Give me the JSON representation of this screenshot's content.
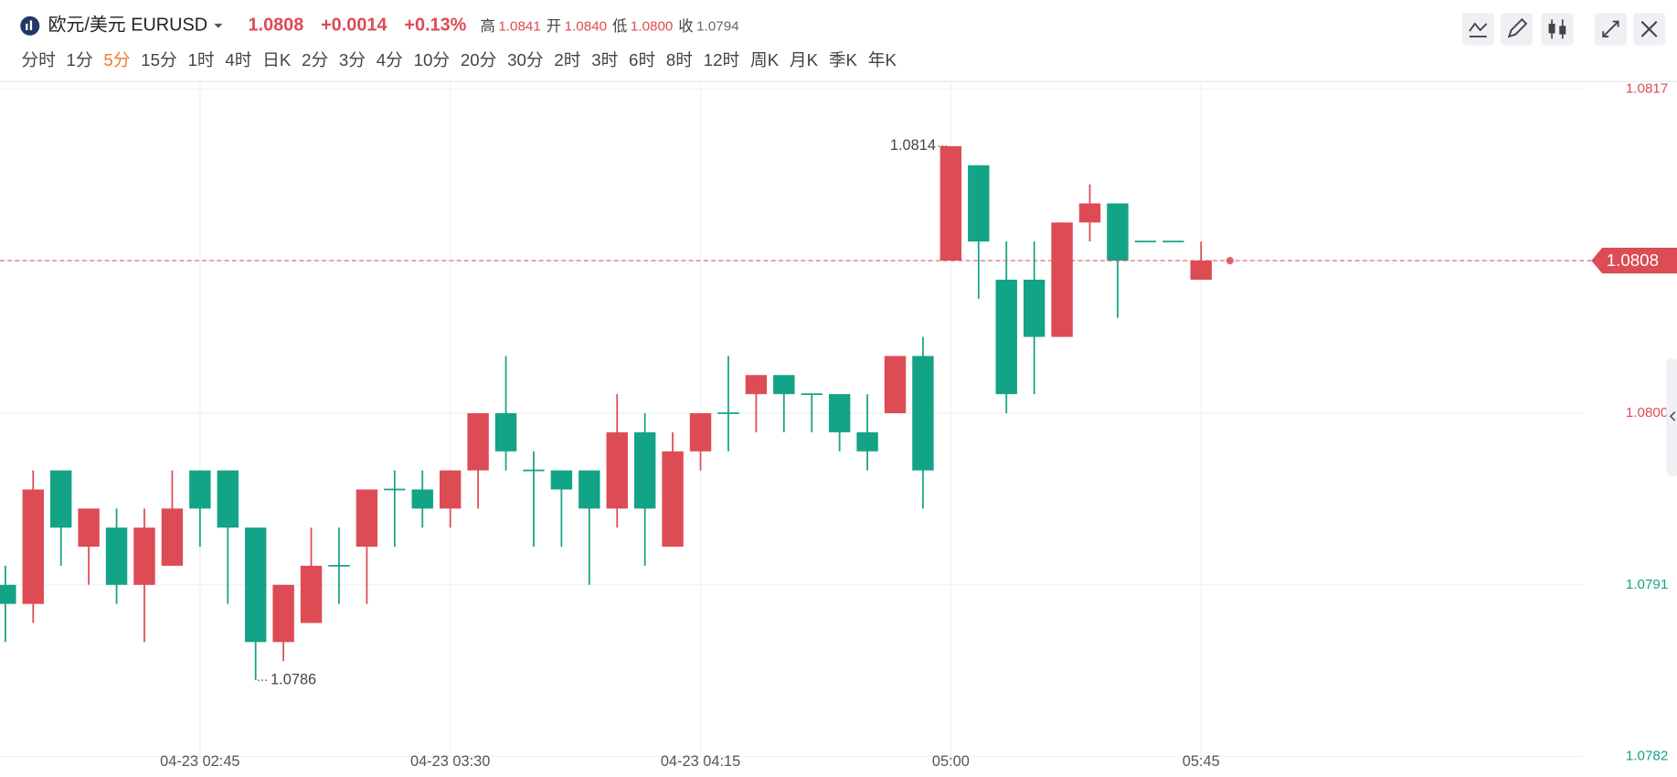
{
  "header": {
    "symbol": "欧元/美元 EURUSD",
    "price": "1.0808",
    "change": "+0.0014",
    "change_pct": "+0.13%",
    "stats": [
      {
        "label": "高",
        "value": "1.0841",
        "color": "#dd4b55"
      },
      {
        "label": "开",
        "value": "1.0840",
        "color": "#dd4b55"
      },
      {
        "label": "低",
        "value": "1.0800",
        "color": "#dd4b55"
      },
      {
        "label": "收",
        "value": "1.0794",
        "color": "#666666"
      }
    ],
    "intervals": [
      "分时",
      "1分",
      "5分",
      "15分",
      "1时",
      "4时",
      "日K",
      "2分",
      "3分",
      "4分",
      "10分",
      "20分",
      "30分",
      "2时",
      "3时",
      "6时",
      "8时",
      "12时",
      "周K",
      "月K",
      "季K",
      "年K"
    ],
    "active_interval": 2
  },
  "chart_data": {
    "type": "candlestick",
    "categories": [
      null,
      null,
      null,
      null,
      null,
      null,
      null,
      "04-23 02:45",
      null,
      null,
      null,
      null,
      null,
      null,
      null,
      null,
      "04-23 03:30",
      null,
      null,
      null,
      null,
      null,
      null,
      null,
      null,
      "04-23 04:15",
      null,
      null,
      null,
      null,
      null,
      null,
      null,
      null,
      "05:00",
      null,
      null,
      null,
      null,
      null,
      null,
      null,
      null,
      "05:45"
    ],
    "open": [
      1.0791,
      1.079,
      1.0797,
      1.0793,
      1.0794,
      1.0791,
      1.0792,
      1.0797,
      1.0797,
      1.0794,
      1.0788,
      1.0789,
      1.0792,
      1.0793,
      1.0796,
      1.0796,
      1.0795,
      1.0797,
      1.08,
      1.0797,
      1.0797,
      1.0797,
      1.0795,
      1.0799,
      1.0793,
      1.0798,
      1.08,
      1.0801,
      1.0802,
      1.0801,
      1.0801,
      1.0799,
      1.08,
      1.0803,
      1.0808,
      1.0813,
      1.0807,
      1.0807,
      1.0804,
      1.081,
      1.0811,
      1.0809,
      1.0809,
      1.0807
    ],
    "high": [
      1.0792,
      1.0797,
      1.0797,
      1.0795,
      1.0795,
      1.0795,
      1.0797,
      1.0797,
      1.0797,
      1.0794,
      1.0791,
      1.0794,
      1.0794,
      1.0796,
      1.0797,
      1.0797,
      1.0797,
      1.08,
      1.0803,
      1.0798,
      1.0797,
      1.0797,
      1.0801,
      1.08,
      1.0799,
      1.08,
      1.0803,
      1.0802,
      1.0802,
      1.0801,
      1.0801,
      1.0801,
      1.0803,
      1.0804,
      1.0814,
      1.0813,
      1.0809,
      1.0809,
      1.081,
      1.0812,
      1.0811,
      1.0809,
      1.0809,
      1.0809
    ],
    "low": [
      1.0788,
      1.0789,
      1.0792,
      1.0791,
      1.079,
      1.0788,
      1.0792,
      1.0793,
      1.079,
      1.0786,
      1.0787,
      1.0789,
      1.079,
      1.079,
      1.0793,
      1.0794,
      1.0794,
      1.0795,
      1.0797,
      1.0793,
      1.0793,
      1.0791,
      1.0794,
      1.0792,
      1.0793,
      1.0797,
      1.0798,
      1.0799,
      1.0799,
      1.0799,
      1.0798,
      1.0797,
      1.08,
      1.0795,
      1.0808,
      1.0806,
      1.08,
      1.0801,
      1.0804,
      1.0809,
      1.0805,
      1.0809,
      1.0809,
      1.0807
    ],
    "close": [
      1.079,
      1.0796,
      1.0794,
      1.0795,
      1.0791,
      1.0794,
      1.0795,
      1.0795,
      1.0794,
      1.0788,
      1.0791,
      1.0792,
      1.0792,
      1.0796,
      1.0796,
      1.0795,
      1.0797,
      1.08,
      1.0798,
      1.0797,
      1.0796,
      1.0795,
      1.0799,
      1.0795,
      1.0798,
      1.08,
      1.08,
      1.0802,
      1.0801,
      1.0801,
      1.0799,
      1.0798,
      1.0803,
      1.0797,
      1.0814,
      1.0809,
      1.0801,
      1.0804,
      1.081,
      1.0811,
      1.0808,
      1.0809,
      1.0809,
      1.0808
    ],
    "up_color": "#dd4b55",
    "down_color": "#13a386",
    "ylim": [
      1.0782,
      1.0817
    ],
    "yticks": [
      1.0817,
      1.0808,
      {
        "value": 1.08,
        "label": "1.0800"
      },
      1.0791,
      1.0782
    ],
    "ytick_colors": [
      "#dd4b55",
      "#dd4b55",
      "#dd4b55",
      "#13a386",
      "#13a386"
    ],
    "grid": true
  }
}
